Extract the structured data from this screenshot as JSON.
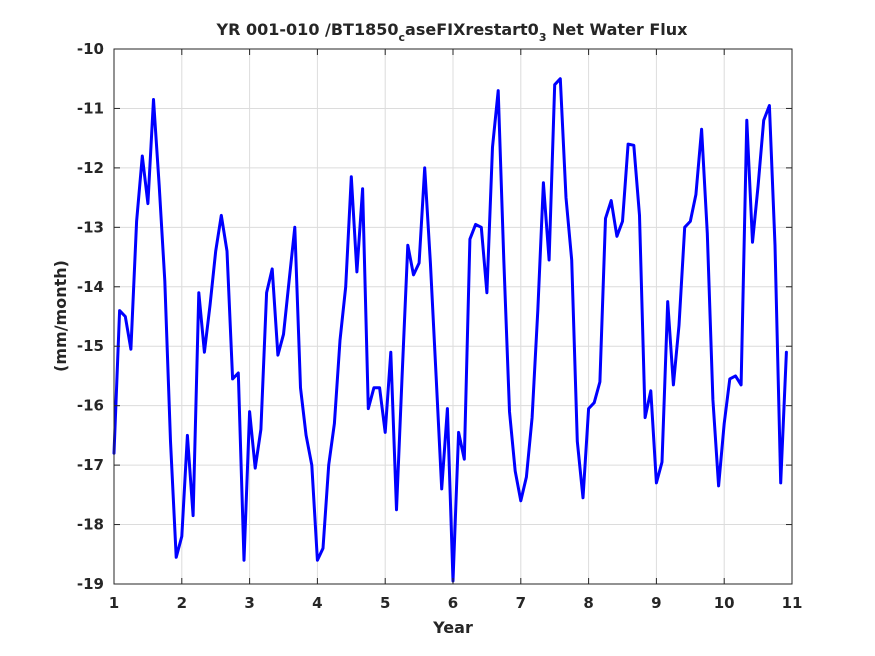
{
  "chart_data": {
    "type": "line",
    "title": "YR 001-010 /BT1850",
    "title_sub1": "c",
    "title_mid": "aseFIXrestart0",
    "title_sub2": "3",
    "title_end": " Net Water Flux",
    "xlabel": "Year",
    "ylabel": "(mm/month)",
    "xlim": [
      1,
      11
    ],
    "ylim": [
      -19,
      -10
    ],
    "xticks": [
      1,
      2,
      3,
      4,
      5,
      6,
      7,
      8,
      9,
      10,
      11
    ],
    "yticks": [
      -10,
      -11,
      -12,
      -13,
      -14,
      -15,
      -16,
      -17,
      -18,
      -19
    ],
    "grid": true,
    "series": [
      {
        "name": "",
        "color": "#0000ff",
        "x": [
          1.0,
          1.083,
          1.167,
          1.25,
          1.333,
          1.417,
          1.5,
          1.583,
          1.667,
          1.75,
          1.833,
          1.917,
          2.0,
          2.083,
          2.167,
          2.25,
          2.333,
          2.417,
          2.5,
          2.583,
          2.667,
          2.75,
          2.833,
          2.917,
          3.0,
          3.083,
          3.167,
          3.25,
          3.333,
          3.417,
          3.5,
          3.583,
          3.667,
          3.75,
          3.833,
          3.917,
          4.0,
          4.083,
          4.167,
          4.25,
          4.333,
          4.417,
          4.5,
          4.583,
          4.667,
          4.75,
          4.833,
          4.917,
          5.0,
          5.083,
          5.167,
          5.25,
          5.333,
          5.417,
          5.5,
          5.583,
          5.667,
          5.75,
          5.833,
          5.917,
          6.0,
          6.083,
          6.167,
          6.25,
          6.333,
          6.417,
          6.5,
          6.583,
          6.667,
          6.75,
          6.833,
          6.917,
          7.0,
          7.083,
          7.167,
          7.25,
          7.333,
          7.417,
          7.5,
          7.583,
          7.667,
          7.75,
          7.833,
          7.917,
          8.0,
          8.083,
          8.167,
          8.25,
          8.333,
          8.417,
          8.5,
          8.583,
          8.667,
          8.75,
          8.833,
          8.917,
          9.0,
          9.083,
          9.167,
          9.25,
          9.333,
          9.417,
          9.5,
          9.583,
          9.667,
          9.75,
          9.833,
          9.917,
          10.0,
          10.083,
          10.167,
          10.25,
          10.333,
          10.417,
          10.5,
          10.583,
          10.667,
          10.75,
          10.833,
          10.917
        ],
        "y": [
          -16.8,
          -14.4,
          -14.5,
          -15.05,
          -12.9,
          -11.8,
          -12.6,
          -10.85,
          -12.3,
          -13.9,
          -16.6,
          -18.55,
          -18.2,
          -16.5,
          -17.85,
          -14.1,
          -15.1,
          -14.3,
          -13.4,
          -12.8,
          -13.4,
          -15.55,
          -15.45,
          -18.6,
          -16.1,
          -17.05,
          -16.4,
          -14.1,
          -13.7,
          -15.15,
          -14.8,
          -13.9,
          -13.0,
          -15.7,
          -16.5,
          -17.0,
          -18.6,
          -18.4,
          -17.0,
          -16.3,
          -14.9,
          -14.0,
          -12.15,
          -13.75,
          -12.35,
          -16.05,
          -15.7,
          -15.7,
          -16.45,
          -15.1,
          -17.75,
          -15.5,
          -13.3,
          -13.8,
          -13.6,
          -12.0,
          -13.6,
          -15.5,
          -17.4,
          -16.05,
          -18.95,
          -16.45,
          -16.9,
          -13.2,
          -12.95,
          -13.0,
          -14.1,
          -11.65,
          -10.7,
          -13.55,
          -16.1,
          -17.1,
          -17.6,
          -17.2,
          -16.2,
          -14.4,
          -12.25,
          -13.55,
          -10.6,
          -10.5,
          -12.5,
          -13.55,
          -16.6,
          -17.55,
          -16.05,
          -15.95,
          -15.6,
          -12.85,
          -12.55,
          -13.15,
          -12.9,
          -11.6,
          -11.62,
          -12.8,
          -16.2,
          -15.75,
          -17.3,
          -16.95,
          -14.25,
          -15.65,
          -14.65,
          -13.0,
          -12.9,
          -12.45,
          -11.35,
          -13.1,
          -15.9,
          -17.35,
          -16.3,
          -15.55,
          -15.5,
          -15.65,
          -11.2,
          -13.25,
          -12.3,
          -11.2,
          -10.95,
          -13.3,
          -17.3,
          -15.1
        ]
      }
    ]
  }
}
